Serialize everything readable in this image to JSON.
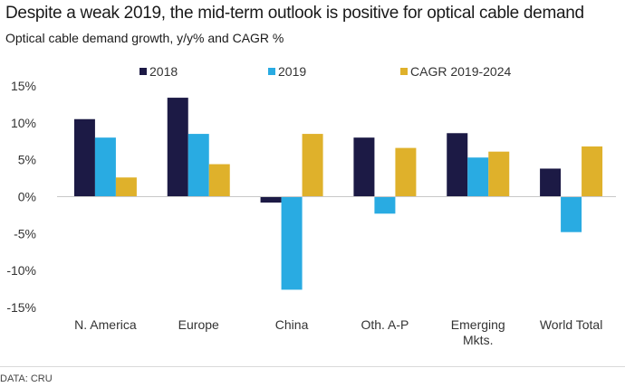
{
  "header": {
    "title": "Despite a weak 2019, the mid-term outlook is positive for optical cable demand",
    "subtitle": "Optical cable demand growth, y/y% and CAGR %"
  },
  "footer": {
    "source": "DATA: CRU"
  },
  "chart_data": {
    "type": "bar",
    "categories": [
      [
        "N. America"
      ],
      [
        "Europe"
      ],
      [
        "China"
      ],
      [
        "Oth. A-P"
      ],
      [
        "Emerging",
        "Mkts."
      ],
      [
        "World Total"
      ]
    ],
    "series": [
      {
        "name": "2018",
        "color": "#1c1a45",
        "values": [
          10.5,
          13.4,
          -0.8,
          8.0,
          8.6,
          3.8
        ]
      },
      {
        "name": "2019",
        "color": "#29abe2",
        "values": [
          8.0,
          8.5,
          -12.6,
          -2.3,
          5.3,
          -4.8
        ]
      },
      {
        "name": "CAGR 2019-2024",
        "color": "#dfb12b",
        "values": [
          2.6,
          4.4,
          8.5,
          6.6,
          6.1,
          6.8
        ]
      }
    ],
    "ylim": [
      -15,
      15
    ],
    "yticks": [
      15,
      10,
      5,
      0,
      -5,
      -10,
      -15
    ],
    "ytick_labels": [
      "15%",
      "10%",
      "5%",
      "0%",
      "-5%",
      "-10%",
      "-15%"
    ],
    "xlabel": "",
    "ylabel": "",
    "grid": false,
    "legend_position": "top"
  }
}
